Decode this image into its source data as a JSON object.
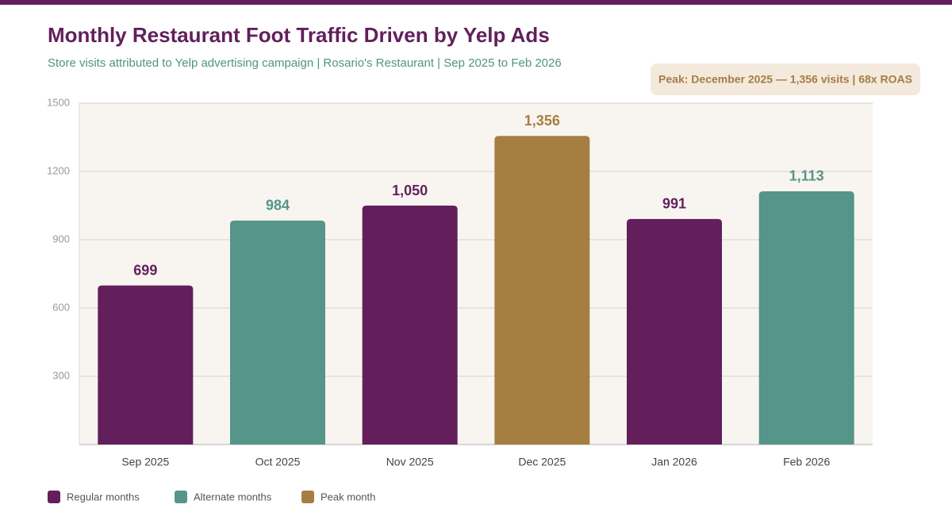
{
  "chart_data": {
    "type": "bar",
    "title": "Monthly Restaurant Foot Traffic Driven by Yelp Ads",
    "subtitle": "Store visits attributed to Yelp advertising campaign | Rosario's Restaurant | Sep 2025 to Feb 2026",
    "annotation": "Peak: December 2025 — 1,356 visits | 68x ROAS",
    "categories": [
      "Sep 2025",
      "Oct 2025",
      "Nov 2025",
      "Dec 2025",
      "Jan 2026",
      "Feb 2026"
    ],
    "values": [
      699,
      984,
      1050,
      1356,
      991,
      1113
    ],
    "value_labels": [
      "699",
      "984",
      "1,050",
      "1,356",
      "991",
      "1,113"
    ],
    "colors": [
      "#621f5c",
      "#55958a",
      "#621f5c",
      "#a67e42",
      "#621f5c",
      "#55958a"
    ],
    "legend": [
      {
        "name": "Regular months",
        "color": "#621f5c"
      },
      {
        "name": "Alternate months",
        "color": "#55958a"
      },
      {
        "name": "Peak month",
        "color": "#a67e42"
      }
    ],
    "ylim": [
      0,
      1500
    ],
    "yticks": [
      300,
      600,
      900,
      1200,
      1500
    ],
    "grid": true
  }
}
